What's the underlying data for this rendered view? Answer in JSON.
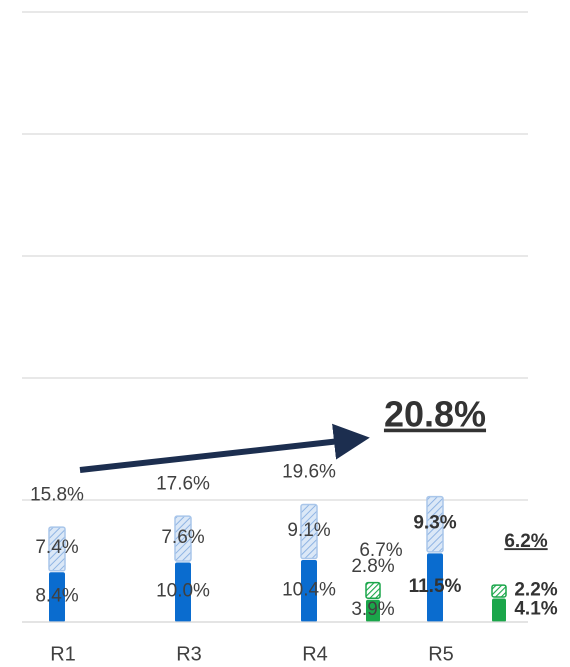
{
  "chart_data": {
    "type": "bar",
    "categories": [
      "R1",
      "R3",
      "R4",
      "R5"
    ],
    "ylim": [
      0,
      100
    ],
    "yticks": [
      0,
      20,
      40,
      60,
      80,
      100
    ],
    "grid": true,
    "series": [
      {
        "stack": 0,
        "hatched": false,
        "color": "#0a6ccf",
        "values": [
          8.4,
          10.0,
          10.4,
          11.5
        ],
        "value_labels": [
          "8.4%",
          "10.0%",
          "10.4%",
          "11.5%"
        ]
      },
      {
        "stack": 0,
        "hatched": true,
        "color": "#0a6ccf",
        "values": [
          7.4,
          7.6,
          9.1,
          9.3
        ],
        "value_labels": [
          "7.4%",
          "7.6%",
          "9.1%",
          "9.3%"
        ]
      },
      {
        "stack": 1,
        "hatched": false,
        "color": "#1aa64a",
        "values": [
          null,
          null,
          3.9,
          4.1
        ],
        "value_labels": [
          null,
          null,
          "3.9%",
          "4.1%"
        ]
      },
      {
        "stack": 1,
        "hatched": true,
        "color": "#1aa64a",
        "values": [
          null,
          null,
          2.8,
          2.2
        ],
        "value_labels": [
          null,
          null,
          "2.8%",
          "2.2%"
        ]
      }
    ],
    "totals": [
      {
        "stack": 0,
        "values": [
          15.8,
          17.6,
          19.6,
          20.8
        ],
        "value_labels": [
          "15.8%",
          "17.6%",
          "19.6%",
          "20.8%"
        ]
      },
      {
        "stack": 1,
        "values": [
          null,
          null,
          6.7,
          6.2
        ],
        "value_labels": [
          null,
          null,
          "6.7%",
          "6.2%"
        ]
      }
    ]
  }
}
